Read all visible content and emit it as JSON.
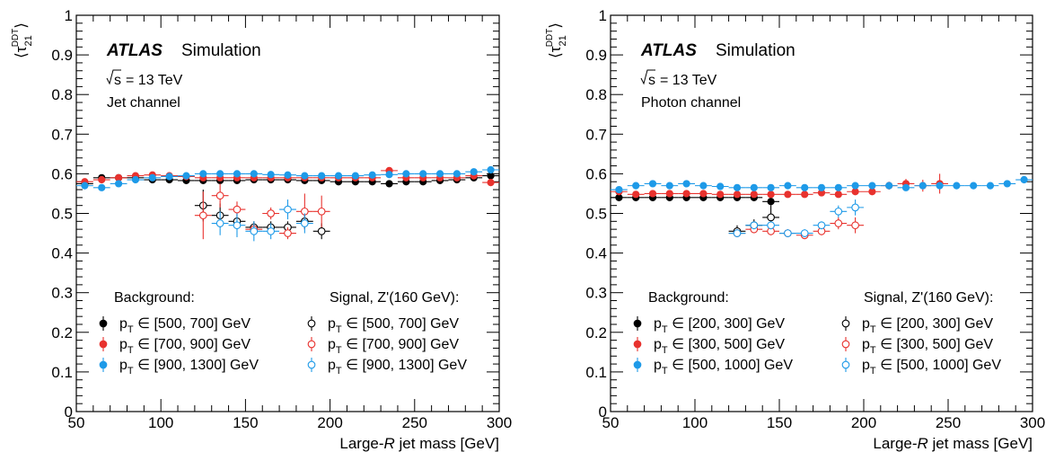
{
  "chart_data": [
    {
      "type": "scatter",
      "panel": "left",
      "experiment": "ATLAS",
      "status": "Simulation",
      "energy": "= 13 TeV",
      "channel": "Jet channel",
      "ylabel_main": "⟨τ",
      "ylabel_sub": "21",
      "ylabel_sup": "DDT",
      "ylabel_close": "⟩",
      "xlabel_pre": "Large-",
      "xlabel_ital": "R",
      "xlabel_post": " jet mass [GeV]",
      "xlim": [
        50,
        300
      ],
      "ylim": [
        0,
        1
      ],
      "xticks": [
        "50",
        "100",
        "150",
        "200",
        "250",
        "300"
      ],
      "yticks": [
        "0",
        "0.1",
        "0.2",
        "0.3",
        "0.4",
        "0.5",
        "0.6",
        "0.7",
        "0.8",
        "0.9",
        "1"
      ],
      "legend_bkg_title": "Background:",
      "legend_sig_title": "Signal, Z'(160 GeV):",
      "series": [
        {
          "name": "[500, 700] GeV",
          "kind": "bkg",
          "color": "#000000",
          "x": [
            55,
            65,
            75,
            85,
            95,
            105,
            115,
            125,
            135,
            145,
            155,
            165,
            175,
            185,
            195,
            205,
            215,
            225,
            235,
            245,
            255,
            265,
            275,
            285,
            295
          ],
          "y": [
            0.575,
            0.59,
            0.59,
            0.59,
            0.585,
            0.585,
            0.583,
            0.583,
            0.583,
            0.583,
            0.585,
            0.585,
            0.585,
            0.583,
            0.583,
            0.58,
            0.58,
            0.58,
            0.575,
            0.58,
            0.58,
            0.583,
            0.585,
            0.59,
            0.595
          ],
          "yerr": [
            0.01,
            0.007,
            0.005,
            0.004,
            0.004,
            0.004,
            0.004,
            0.004,
            0.004,
            0.004,
            0.004,
            0.004,
            0.004,
            0.004,
            0.004,
            0.004,
            0.004,
            0.004,
            0.005,
            0.005,
            0.006,
            0.006,
            0.007,
            0.008,
            0.01
          ]
        },
        {
          "name": "[700, 900] GeV",
          "kind": "bkg",
          "color": "#e8322e",
          "x": [
            55,
            65,
            75,
            85,
            95,
            105,
            115,
            125,
            135,
            145,
            155,
            165,
            175,
            185,
            195,
            205,
            215,
            225,
            235,
            245,
            255,
            265,
            275,
            285,
            295
          ],
          "y": [
            0.58,
            0.585,
            0.59,
            0.595,
            0.597,
            0.595,
            0.593,
            0.59,
            0.59,
            0.59,
            0.59,
            0.59,
            0.59,
            0.59,
            0.59,
            0.59,
            0.59,
            0.59,
            0.608,
            0.59,
            0.59,
            0.59,
            0.59,
            0.595,
            0.578
          ],
          "yerr": [
            0.008,
            0.006,
            0.005,
            0.004,
            0.004,
            0.004,
            0.004,
            0.004,
            0.004,
            0.004,
            0.004,
            0.004,
            0.004,
            0.004,
            0.004,
            0.004,
            0.004,
            0.004,
            0.008,
            0.005,
            0.005,
            0.006,
            0.006,
            0.007,
            0.009
          ]
        },
        {
          "name": "[900, 1300] GeV",
          "kind": "bkg",
          "color": "#1e9ae8",
          "x": [
            55,
            65,
            75,
            85,
            95,
            105,
            115,
            125,
            135,
            145,
            155,
            165,
            175,
            185,
            195,
            205,
            215,
            225,
            235,
            245,
            255,
            265,
            275,
            285,
            295
          ],
          "y": [
            0.57,
            0.565,
            0.575,
            0.585,
            0.59,
            0.593,
            0.595,
            0.6,
            0.6,
            0.6,
            0.6,
            0.598,
            0.597,
            0.595,
            0.595,
            0.595,
            0.595,
            0.597,
            0.598,
            0.6,
            0.6,
            0.6,
            0.6,
            0.605,
            0.61
          ],
          "yerr": [
            0.008,
            0.006,
            0.005,
            0.004,
            0.004,
            0.004,
            0.004,
            0.004,
            0.004,
            0.004,
            0.004,
            0.004,
            0.004,
            0.004,
            0.004,
            0.004,
            0.004,
            0.004,
            0.004,
            0.005,
            0.005,
            0.005,
            0.006,
            0.007,
            0.008
          ]
        },
        {
          "name": "[500, 700] GeV",
          "kind": "sig",
          "color": "#000000",
          "x": [
            125,
            135,
            145,
            155,
            165,
            175,
            185,
            195
          ],
          "y": [
            0.52,
            0.495,
            0.48,
            0.465,
            0.465,
            0.465,
            0.48,
            0.455
          ],
          "yerr": [
            0.04,
            0.03,
            0.02,
            0.015,
            0.015,
            0.015,
            0.02,
            0.02
          ]
        },
        {
          "name": "[700, 900] GeV",
          "kind": "sig",
          "color": "#e8322e",
          "x": [
            125,
            135,
            145,
            155,
            165,
            175,
            185,
            195
          ],
          "y": [
            0.495,
            0.545,
            0.51,
            0.46,
            0.5,
            0.45,
            0.505,
            0.505
          ],
          "yerr": [
            0.06,
            0.03,
            0.02,
            0.015,
            0.015,
            0.015,
            0.045,
            0.04
          ]
        },
        {
          "name": "[900, 1300] GeV",
          "kind": "sig",
          "color": "#1e9ae8",
          "x": [
            135,
            145,
            155,
            165,
            175,
            185
          ],
          "y": [
            0.475,
            0.47,
            0.455,
            0.455,
            0.51,
            0.475
          ],
          "yerr": [
            0.03,
            0.03,
            0.025,
            0.02,
            0.025,
            0.025
          ]
        }
      ]
    },
    {
      "type": "scatter",
      "panel": "right",
      "experiment": "ATLAS",
      "status": "Simulation",
      "energy": "= 13 TeV",
      "channel": "Photon channel",
      "ylabel_main": "⟨τ",
      "ylabel_sub": "21",
      "ylabel_sup": "DDT",
      "ylabel_close": "⟩",
      "xlabel_pre": "Large-",
      "xlabel_ital": "R",
      "xlabel_post": " jet mass [GeV]",
      "xlim": [
        50,
        300
      ],
      "ylim": [
        0,
        1
      ],
      "xticks": [
        "50",
        "100",
        "150",
        "200",
        "250",
        "300"
      ],
      "yticks": [
        "0",
        "0.1",
        "0.2",
        "0.3",
        "0.4",
        "0.5",
        "0.6",
        "0.7",
        "0.8",
        "0.9",
        "1"
      ],
      "legend_bkg_title": "Background:",
      "legend_sig_title": "Signal, Z'(160 GeV):",
      "series": [
        {
          "name": "[200, 300] GeV",
          "kind": "bkg",
          "color": "#000000",
          "x": [
            55,
            65,
            75,
            85,
            95,
            105,
            115,
            125,
            135,
            145
          ],
          "y": [
            0.54,
            0.54,
            0.54,
            0.54,
            0.54,
            0.54,
            0.54,
            0.54,
            0.54,
            0.53
          ],
          "yerr": [
            0.005,
            0.005,
            0.004,
            0.004,
            0.004,
            0.004,
            0.005,
            0.005,
            0.006,
            0.01
          ]
        },
        {
          "name": "[300, 500] GeV",
          "kind": "bkg",
          "color": "#e8322e",
          "x": [
            55,
            65,
            75,
            85,
            95,
            105,
            115,
            125,
            135,
            145,
            155,
            165,
            175,
            185,
            195,
            205,
            215,
            225,
            235,
            245
          ],
          "y": [
            0.555,
            0.548,
            0.55,
            0.55,
            0.55,
            0.55,
            0.548,
            0.548,
            0.548,
            0.548,
            0.548,
            0.548,
            0.552,
            0.548,
            0.555,
            0.555,
            0.57,
            0.575,
            0.57,
            0.575
          ],
          "yerr": [
            0.006,
            0.005,
            0.005,
            0.004,
            0.004,
            0.004,
            0.004,
            0.004,
            0.004,
            0.004,
            0.004,
            0.005,
            0.005,
            0.006,
            0.007,
            0.008,
            0.01,
            0.012,
            0.015,
            0.025
          ]
        },
        {
          "name": "[500, 1000] GeV",
          "kind": "bkg",
          "color": "#1e9ae8",
          "x": [
            55,
            65,
            75,
            85,
            95,
            105,
            115,
            125,
            135,
            145,
            155,
            165,
            175,
            185,
            195,
            205,
            215,
            225,
            235,
            245,
            255,
            265,
            275,
            285,
            295
          ],
          "y": [
            0.56,
            0.57,
            0.575,
            0.57,
            0.575,
            0.57,
            0.568,
            0.565,
            0.565,
            0.565,
            0.57,
            0.565,
            0.565,
            0.565,
            0.57,
            0.57,
            0.57,
            0.565,
            0.57,
            0.57,
            0.57,
            0.57,
            0.57,
            0.575,
            0.585
          ],
          "yerr": [
            0.006,
            0.005,
            0.005,
            0.004,
            0.004,
            0.004,
            0.004,
            0.004,
            0.004,
            0.004,
            0.004,
            0.004,
            0.004,
            0.004,
            0.004,
            0.004,
            0.004,
            0.004,
            0.005,
            0.005,
            0.005,
            0.005,
            0.006,
            0.007,
            0.009
          ]
        },
        {
          "name": "[200, 300] GeV",
          "kind": "sig",
          "color": "#000000",
          "x": [
            125,
            135,
            145
          ],
          "y": [
            0.455,
            0.47,
            0.49
          ],
          "yerr": [
            0.015,
            0.015,
            0.03
          ]
        },
        {
          "name": "[300, 500] GeV",
          "kind": "sig",
          "color": "#e8322e",
          "x": [
            125,
            135,
            145,
            155,
            165,
            175,
            185,
            195
          ],
          "y": [
            0.45,
            0.46,
            0.455,
            0.45,
            0.445,
            0.455,
            0.475,
            0.47
          ],
          "yerr": [
            0.01,
            0.01,
            0.01,
            0.01,
            0.01,
            0.01,
            0.015,
            0.02
          ]
        },
        {
          "name": "[500, 1000] GeV",
          "kind": "sig",
          "color": "#1e9ae8",
          "x": [
            125,
            135,
            145,
            155,
            165,
            175,
            185,
            195
          ],
          "y": [
            0.45,
            0.47,
            0.47,
            0.45,
            0.45,
            0.47,
            0.505,
            0.515
          ],
          "yerr": [
            0.01,
            0.01,
            0.01,
            0.01,
            0.01,
            0.01,
            0.015,
            0.02
          ]
        }
      ]
    }
  ]
}
